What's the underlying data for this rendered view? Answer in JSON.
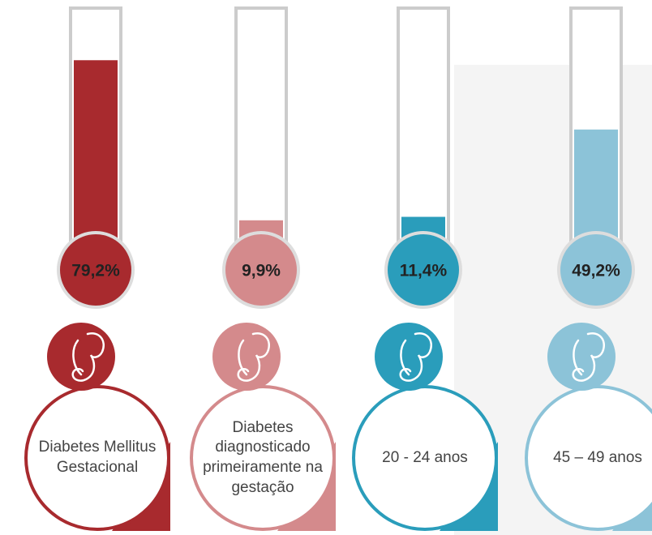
{
  "chart_data": {
    "type": "thermometer",
    "categories": [
      "Diabetes Mellitus Gestacional",
      "Diabetes diagnosticado primeiramente na gestação",
      "20 - 24 anos",
      "45 – 49 anos"
    ],
    "values": [
      79.2,
      9.9,
      11.4,
      49.2
    ],
    "value_labels": [
      "79,2%",
      "9,9%",
      "11,4%",
      "49,2%"
    ],
    "colors": [
      "#a82a2e",
      "#d48a8c",
      "#2a9dbb",
      "#8cc3d8"
    ],
    "ylim": [
      0,
      100
    ]
  }
}
